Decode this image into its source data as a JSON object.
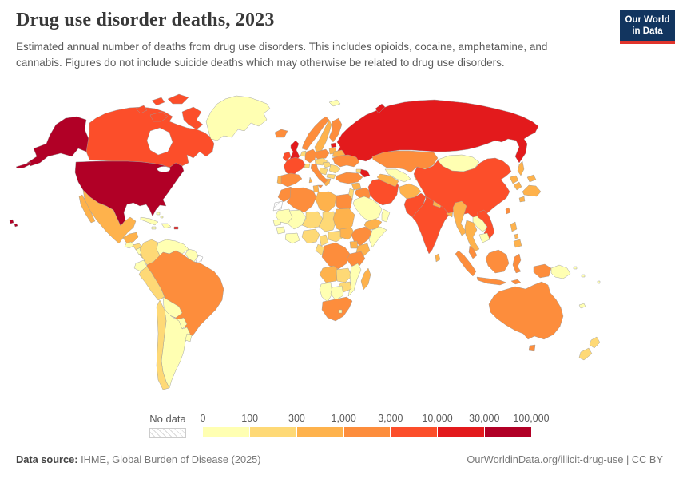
{
  "header": {
    "title": "Drug use disorder deaths, 2023",
    "subtitle": "Estimated annual number of deaths from drug use disorders. This includes opioids, cocaine, amphetamine, and cannabis. Figures do not include suicide deaths which may otherwise be related to drug use disorders."
  },
  "logo": {
    "line1": "Our World",
    "line2": "in Data",
    "background": "#12355f",
    "accent": "#e0342c"
  },
  "legend": {
    "no_data_label": "No data"
  },
  "footer": {
    "source_label": "Data source:",
    "source_text": " IHME, Global Burden of Disease (2025)",
    "right_text": "OurWorldinData.org/illicit-drug-use | CC BY"
  },
  "map": {
    "border_color": "#9c9c9c",
    "ocean_color": "#ffffff"
  },
  "chart_data": {
    "type": "choropleth",
    "title": "Drug use disorder deaths, 2023",
    "legend_position": "bottom",
    "bin_edges": [
      "0",
      "100",
      "300",
      "1,000",
      "3,000",
      "10,000",
      "30,000",
      "100,000"
    ],
    "palette": [
      "#FFFFB2",
      "#FED976",
      "#FEB24C",
      "#FD8D3C",
      "#FC4E2A",
      "#E31A1C",
      "#B10026"
    ],
    "no_data_value": -1,
    "countries": {
      "usa": 6,
      "canada": 4,
      "greenland": 0,
      "mexico": 2,
      "guatemala": 0,
      "honduras": 1,
      "nicaragua": 0,
      "costa-rica-panama": 1,
      "cuba": 0,
      "hispaniola": 0,
      "jamaica": 0,
      "puerto-rico": 5,
      "bahamas": 0,
      "colombia": 1,
      "venezuela": 0,
      "guyana-suriname": 0,
      "french-guiana": -1,
      "ecuador": 0,
      "peru": 1,
      "brazil": 3,
      "bolivia": 0,
      "paraguay": 0,
      "argentina": 0,
      "chile": 1,
      "uruguay": 0,
      "iceland": 3,
      "uk": 5,
      "ireland": 4,
      "norway": 3,
      "sweden": 2,
      "finland": 3,
      "denmark": 2,
      "estonia": 5,
      "latvia-lithuania": 2,
      "svalbard": 0,
      "russia": 5,
      "belarus": 2,
      "poland": 3,
      "germany": 3,
      "benelux": 1,
      "france": 4,
      "switzerland": 1,
      "austria-czechia": 1,
      "ukraine": 3,
      "romania": 1,
      "hungary": 1,
      "balkans": 1,
      "bulgaria": 1,
      "greece": 2,
      "italy": 3,
      "sardinia": 2,
      "spain": 3,
      "portugal": 2,
      "turkey": 3,
      "georgia": 1,
      "azerbaijan": 5,
      "syria": 2,
      "iraq": 3,
      "jordan-israel": 1,
      "saudi-arabia": 0,
      "yemen": 2,
      "oman": 0,
      "iran": 4,
      "turkmenistan": 2,
      "uzbekistan": 0,
      "kazakhstan": 3,
      "kyrgyzstan": 1,
      "tajikistan": 1,
      "afghanistan": 2,
      "pakistan": 4,
      "india": 4,
      "nepal": 2,
      "bangladesh": 2,
      "sri-lanka": 2,
      "mongolia": 0,
      "china": 4,
      "taiwan": 3,
      "north-korea": 2,
      "south-korea": 2,
      "japan": 2,
      "myanmar": 2,
      "thailand": 2,
      "laos": 0,
      "vietnam": 4,
      "cambodia": 0,
      "malaysia": 3,
      "indonesia": 3,
      "philippines": 2,
      "papua-new-guinea": 0,
      "pacific-islands": 0,
      "australia": 3,
      "new-zealand": 1,
      "new-caledonia": 0,
      "morocco": 3,
      "western-sahara": -1,
      "algeria": 3,
      "tunisia": 2,
      "libya": 2,
      "egypt": 3,
      "mauritania": 0,
      "mali": 0,
      "niger": 1,
      "chad": 1,
      "sudan": 2,
      "senegal": 0,
      "guinea": 0,
      "ivory-coast-ghana": 0,
      "nigeria": 1,
      "cameroon": 1,
      "central-african-republic": 1,
      "south-sudan": 2,
      "ethiopia": 3,
      "somalia": 0,
      "kenya": 2,
      "uganda": 2,
      "drc": 3,
      "congo-gabon": 1,
      "tanzania": 3,
      "angola": 2,
      "zambia": 1,
      "mozambique": 0,
      "zimbabwe": 1,
      "namibia": 0,
      "botswana": 0,
      "south-africa": 3,
      "lesotho": 0,
      "madagascar": 2
    }
  }
}
